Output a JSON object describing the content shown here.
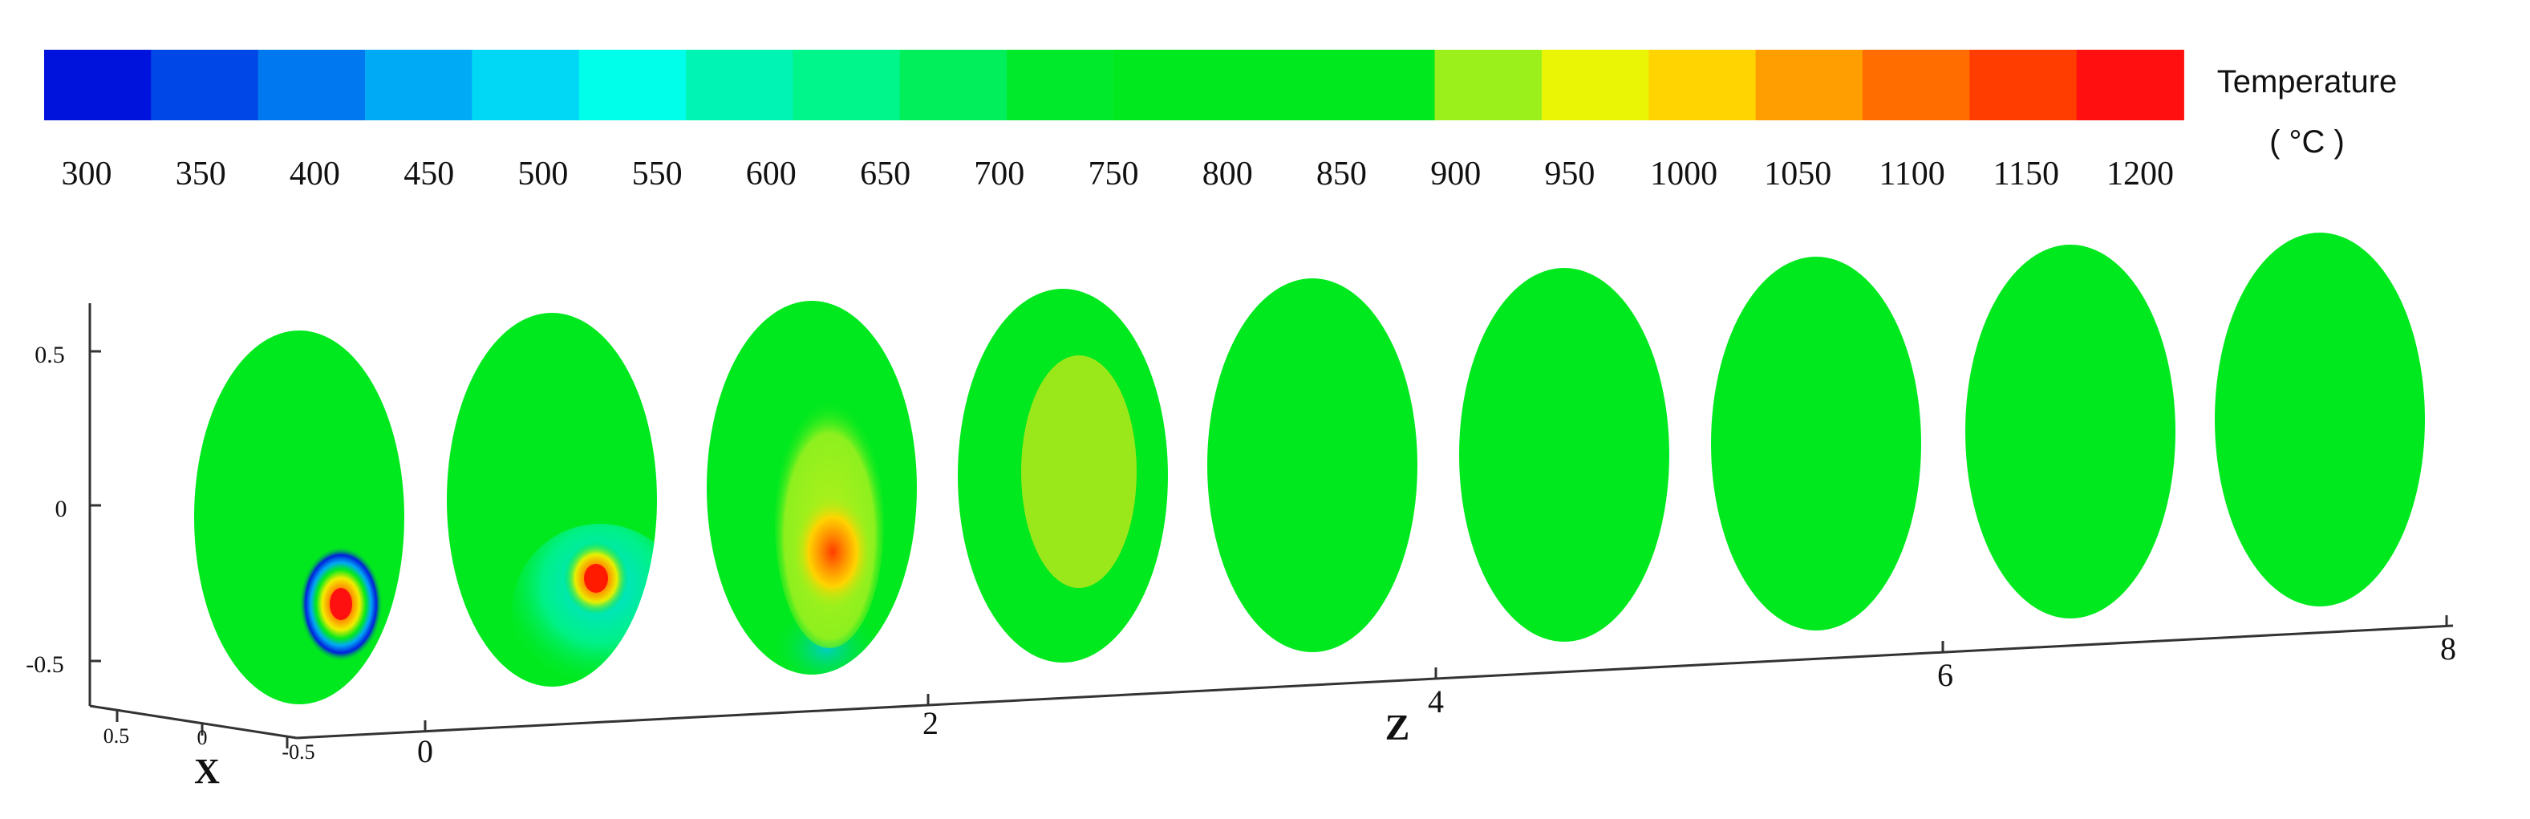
{
  "chart_data": {
    "type": "heatmap",
    "legend": {
      "title": "Temperature",
      "unit": "( °C )",
      "ticks": [
        300,
        350,
        400,
        450,
        500,
        550,
        600,
        650,
        700,
        750,
        800,
        850,
        900,
        950,
        1000,
        1050,
        1100,
        1150,
        1200
      ],
      "colors": [
        "#0013dc",
        "#0047e8",
        "#0078f0",
        "#00aaf5",
        "#00d8f5",
        "#00ffea",
        "#00f4b4",
        "#00f58a",
        "#00ef5a",
        "#00ea2c",
        "#00e91e",
        "#00e91e",
        "#00e91e",
        "#9bf01c",
        "#eaf505",
        "#ffd400",
        "#ff9e00",
        "#ff6d00",
        "#ff3d00",
        "#ff0f0f"
      ]
    },
    "axes": {
      "z": {
        "label": "Z",
        "ticks": [
          "0",
          "2",
          "4",
          "6",
          "8"
        ]
      },
      "x": {
        "label": "X",
        "ticks": [
          "0.5",
          "0",
          "-0.5"
        ]
      },
      "y": {
        "label": "",
        "ticks": [
          "0.5",
          "0",
          "-0.5"
        ]
      }
    },
    "background_color": "#00e91e",
    "slices": [
      {
        "z": 0,
        "hotspot": {
          "x": 0.3,
          "y": -0.3,
          "peak_temp": 1200,
          "cold_ring_temp": 300
        }
      },
      {
        "z": 1,
        "hotspot": {
          "x": 0.3,
          "y": -0.25,
          "peak_temp": 1150,
          "cold_plume_temp": 550
        }
      },
      {
        "z": 2,
        "hotspot": {
          "x": 0.15,
          "y": -0.15,
          "peak_temp": 1100,
          "warm_plume_temp": 950
        }
      },
      {
        "z": 3,
        "hotspot": {
          "x": 0.1,
          "y": 0.1,
          "peak_temp": 950
        }
      },
      {
        "z": 4,
        "hotspot": null
      },
      {
        "z": 5,
        "hotspot": null
      },
      {
        "z": 6,
        "hotspot": null
      },
      {
        "z": 7,
        "hotspot": null
      },
      {
        "z": 8,
        "hotspot": null
      }
    ]
  }
}
